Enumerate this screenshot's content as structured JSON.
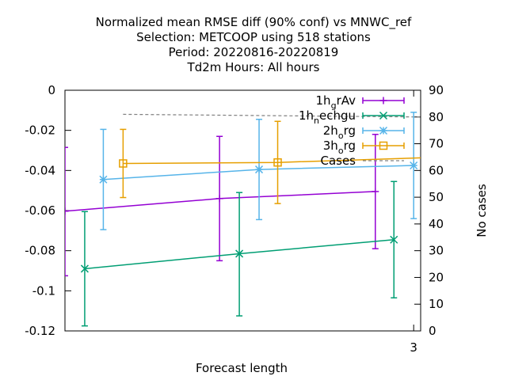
{
  "chart_data": {
    "type": "line",
    "title_lines": [
      "Normalized mean RMSE diff (90% conf) vs MNWC_ref",
      "Selection: METCOOP using   518 stations",
      "Period: 20220816-20220819",
      "Td2m   Hours:  All hours"
    ],
    "xlabel": "Forecast length",
    "ylabel_right": "No cases",
    "xlim": [
      0.0,
      3.06
    ],
    "ylim": [
      -0.12,
      0
    ],
    "y2lim": [
      0,
      90
    ],
    "x_ticks": [
      {
        "value": 3,
        "label": "3"
      }
    ],
    "y_ticks": [
      {
        "value": 0,
        "label": "0"
      },
      {
        "value": -0.02,
        "label": "-0.02"
      },
      {
        "value": -0.04,
        "label": "-0.04"
      },
      {
        "value": -0.06,
        "label": "-0.06"
      },
      {
        "value": -0.08,
        "label": "-0.08"
      },
      {
        "value": -0.1,
        "label": "-0.1"
      },
      {
        "value": -0.12,
        "label": "-0.12"
      }
    ],
    "y2_ticks": [
      {
        "value": 0,
        "label": "0"
      },
      {
        "value": 10,
        "label": "10"
      },
      {
        "value": 20,
        "label": "20"
      },
      {
        "value": 30,
        "label": "30"
      },
      {
        "value": 40,
        "label": "40"
      },
      {
        "value": 50,
        "label": "50"
      },
      {
        "value": 60,
        "label": "60"
      },
      {
        "value": 70,
        "label": "70"
      },
      {
        "value": 80,
        "label": "80"
      },
      {
        "value": 90,
        "label": "90"
      }
    ],
    "series": [
      {
        "name": "1h_grAv",
        "color": "#9400d3",
        "marker": "plus",
        "points": [
          {
            "x": 0.0,
            "y": -0.0603,
            "lo": -0.0925,
            "hi": -0.0285
          },
          {
            "x": 1.33,
            "y": -0.054,
            "lo": -0.085,
            "hi": -0.023
          },
          {
            "x": 2.67,
            "y": -0.0505,
            "lo": -0.079,
            "hi": -0.022
          }
        ]
      },
      {
        "name": "1h_nechgu",
        "color": "#009e73",
        "marker": "x",
        "points": [
          {
            "x": 0.17,
            "y": -0.089,
            "lo": -0.1175,
            "hi": -0.0605
          },
          {
            "x": 1.5,
            "y": -0.0815,
            "lo": -0.1125,
            "hi": -0.051
          },
          {
            "x": 2.83,
            "y": -0.0745,
            "lo": -0.1035,
            "hi": -0.0455
          }
        ]
      },
      {
        "name": "2h_org",
        "color": "#56b4e9",
        "marker": "star",
        "points": [
          {
            "x": 0.33,
            "y": -0.0445,
            "lo": -0.0695,
            "hi": -0.0195
          },
          {
            "x": 1.67,
            "y": -0.0395,
            "lo": -0.0645,
            "hi": -0.0145
          },
          {
            "x": 3.0,
            "y": -0.0375,
            "lo": -0.064,
            "hi": -0.011
          }
        ]
      },
      {
        "name": "3h_org",
        "color": "#e69f00",
        "marker": "square",
        "points": [
          {
            "x": 0.5,
            "y": -0.0365,
            "lo": -0.0535,
            "hi": -0.0195
          },
          {
            "x": 1.83,
            "y": -0.036,
            "lo": -0.0565,
            "hi": -0.0155
          },
          {
            "x": 3.17,
            "y": -0.0335,
            "lo": -0.0525,
            "hi": -0.0145
          }
        ]
      }
    ],
    "cases": {
      "name": "Cases",
      "color": "#808080",
      "style": "dashed",
      "x_start": 0.5,
      "x_end": 3.06,
      "values_start": 81,
      "values_end": 80
    },
    "legend_position": "top-right"
  }
}
